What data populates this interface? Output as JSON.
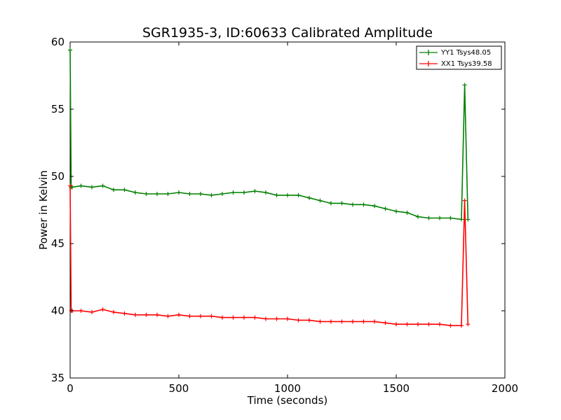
{
  "chart_data": {
    "type": "line",
    "title": "SGR1935-3, ID:60633 Calibrated Amplitude",
    "xlabel": "Time (seconds)",
    "ylabel": "Power in Kelvin",
    "xlim": [
      0,
      2000
    ],
    "ylim": [
      35,
      60
    ],
    "xticks": [
      0,
      500,
      1000,
      1500,
      2000
    ],
    "yticks": [
      35,
      40,
      45,
      50,
      55,
      60
    ],
    "grid": false,
    "legend_position": "top-right",
    "series": [
      {
        "name": "YY1 Tsys48.05",
        "color": "#008000",
        "x": [
          0,
          5,
          10,
          50,
          100,
          150,
          200,
          250,
          300,
          350,
          400,
          450,
          500,
          550,
          600,
          650,
          700,
          750,
          800,
          850,
          900,
          950,
          1000,
          1050,
          1100,
          1150,
          1200,
          1250,
          1300,
          1350,
          1400,
          1450,
          1500,
          1550,
          1600,
          1650,
          1700,
          1750,
          1800,
          1815,
          1830
        ],
        "y": [
          59.4,
          49.2,
          49.2,
          49.3,
          49.2,
          49.3,
          49.0,
          49.0,
          48.8,
          48.7,
          48.7,
          48.7,
          48.8,
          48.7,
          48.7,
          48.6,
          48.7,
          48.8,
          48.8,
          48.9,
          48.8,
          48.6,
          48.6,
          48.6,
          48.4,
          48.2,
          48.0,
          48.0,
          47.9,
          47.9,
          47.8,
          47.6,
          47.4,
          47.3,
          47.0,
          46.9,
          46.9,
          46.9,
          46.8,
          56.8,
          46.8
        ]
      },
      {
        "name": "XX1 Tsys39.58",
        "color": "#ff0000",
        "x": [
          0,
          5,
          10,
          50,
          100,
          150,
          200,
          250,
          300,
          350,
          400,
          450,
          500,
          550,
          600,
          650,
          700,
          750,
          800,
          850,
          900,
          950,
          1000,
          1050,
          1100,
          1150,
          1200,
          1250,
          1300,
          1350,
          1400,
          1450,
          1500,
          1550,
          1600,
          1650,
          1700,
          1750,
          1800,
          1815,
          1830
        ],
        "y": [
          49.3,
          40.0,
          40.0,
          40.0,
          39.9,
          40.1,
          39.9,
          39.8,
          39.7,
          39.7,
          39.7,
          39.6,
          39.7,
          39.6,
          39.6,
          39.6,
          39.5,
          39.5,
          39.5,
          39.5,
          39.4,
          39.4,
          39.4,
          39.3,
          39.3,
          39.2,
          39.2,
          39.2,
          39.2,
          39.2,
          39.2,
          39.1,
          39.0,
          39.0,
          39.0,
          39.0,
          39.0,
          38.9,
          38.9,
          48.2,
          39.0
        ]
      }
    ]
  }
}
